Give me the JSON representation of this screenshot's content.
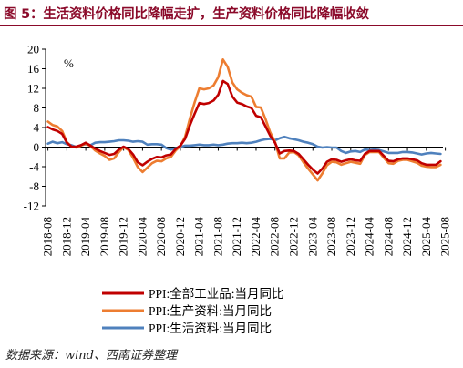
{
  "title": "图 5：生活资料价格同比降幅走扩，生产资料价格同比降幅收敛",
  "source": "数据来源：wind、西南证券整理",
  "chart_data": {
    "type": "line",
    "unit_label": "%",
    "ylim": [
      -12,
      20
    ],
    "yticks": [
      20,
      16,
      12,
      8,
      4,
      0,
      -4,
      -8,
      -12
    ],
    "xtick_labels": [
      "2018-08",
      "2018-12",
      "2019-04",
      "2019-08",
      "2019-12",
      "2020-04",
      "2020-08",
      "2020-12",
      "2021-04",
      "2021-08",
      "2021-12",
      "2022-04",
      "2022-08",
      "2022-12",
      "2023-04",
      "2023-08",
      "2023-12",
      "2024-04",
      "2024-08",
      "2024-12",
      "2025-04",
      "2025-08"
    ],
    "x_start": "2018-08",
    "legend_position": "bottom",
    "colors": {
      "ppi": "#c00000",
      "production": "#ed7d31",
      "living": "#4f81bd"
    },
    "series": [
      {
        "key": "ppi",
        "name": "PPI:全部工业品:当月同比",
        "values": [
          4.1,
          3.6,
          3.3,
          2.7,
          0.9,
          0.1,
          0.1,
          0.4,
          0.9,
          0.3,
          -0.3,
          -0.8,
          -1.2,
          -1.6,
          -1.4,
          -0.5,
          0.1,
          -0.4,
          -1.5,
          -3.1,
          -3.7,
          -3.0,
          -2.4,
          -2.0,
          -2.1,
          -1.7,
          -1.5,
          -0.4,
          0.3,
          1.7,
          4.4,
          6.8,
          9.0,
          8.8,
          9.0,
          9.5,
          10.7,
          13.5,
          12.9,
          10.3,
          9.1,
          8.8,
          8.3,
          8.0,
          6.4,
          6.1,
          4.2,
          2.3,
          0.9,
          -1.3,
          -0.8,
          -0.7,
          -0.8,
          -1.4,
          -2.5,
          -3.6,
          -4.6,
          -5.4,
          -4.4,
          -3.0,
          -2.5,
          -2.6,
          -3.0,
          -2.7,
          -2.5,
          -2.7,
          -2.8,
          -1.4,
          -0.8,
          -0.8,
          -0.8,
          -1.8,
          -2.8,
          -2.9,
          -2.5,
          -2.3,
          -2.3,
          -2.5,
          -2.7,
          -3.3,
          -3.6,
          -3.6,
          -3.6,
          -2.9
        ]
      },
      {
        "key": "production",
        "name": "PPI:生产资料:当月同比",
        "values": [
          5.2,
          4.5,
          4.2,
          3.3,
          1.0,
          0.1,
          -0.1,
          0.3,
          0.7,
          0.2,
          -0.7,
          -1.3,
          -1.8,
          -2.6,
          -2.3,
          -1.0,
          0.0,
          -0.6,
          -2.2,
          -4.1,
          -5.1,
          -4.2,
          -3.3,
          -2.8,
          -2.9,
          -2.3,
          -2.0,
          -0.7,
          0.2,
          2.1,
          5.8,
          9.1,
          12.0,
          11.8,
          12.0,
          12.6,
          14.3,
          17.9,
          16.4,
          13.2,
          11.8,
          11.1,
          10.6,
          10.3,
          8.2,
          8.1,
          5.7,
          3.0,
          1.1,
          -2.3,
          -2.3,
          -1.1,
          -1.0,
          -1.7,
          -3.1,
          -4.4,
          -5.6,
          -6.8,
          -5.4,
          -3.7,
          -3.0,
          -3.1,
          -3.6,
          -3.3,
          -3.0,
          -3.2,
          -3.4,
          -1.6,
          -1.0,
          -1.0,
          -1.0,
          -2.2,
          -3.3,
          -3.4,
          -2.8,
          -2.6,
          -2.6,
          -2.9,
          -3.2,
          -3.8,
          -4.0,
          -4.1,
          -4.1,
          -3.6
        ]
      },
      {
        "key": "living",
        "name": "PPI:生活资料:当月同比",
        "values": [
          0.7,
          1.1,
          0.8,
          1.0,
          0.6,
          0.4,
          0.0,
          0.4,
          0.6,
          0.4,
          0.9,
          1.0,
          1.0,
          1.1,
          1.2,
          1.4,
          1.4,
          1.3,
          1.1,
          1.2,
          1.1,
          0.5,
          0.6,
          0.6,
          0.5,
          -0.2,
          -0.5,
          -0.2,
          0.0,
          0.3,
          0.3,
          0.4,
          0.5,
          0.4,
          0.4,
          0.5,
          0.4,
          0.5,
          0.7,
          0.8,
          0.8,
          0.9,
          0.8,
          0.9,
          1.1,
          1.4,
          1.6,
          1.7,
          1.4,
          1.8,
          2.1,
          1.8,
          1.6,
          1.4,
          1.1,
          0.9,
          0.6,
          0.1,
          -0.1,
          0.0,
          -0.1,
          -0.1,
          -0.8,
          -1.2,
          -0.9,
          -0.8,
          -1.0,
          -0.5,
          -0.6,
          -0.5,
          -0.6,
          -0.9,
          -1.2,
          -1.2,
          -1.2,
          -1.0,
          -1.0,
          -1.1,
          -1.3,
          -1.5,
          -1.3,
          -1.2,
          -1.3,
          -1.4
        ]
      }
    ]
  }
}
